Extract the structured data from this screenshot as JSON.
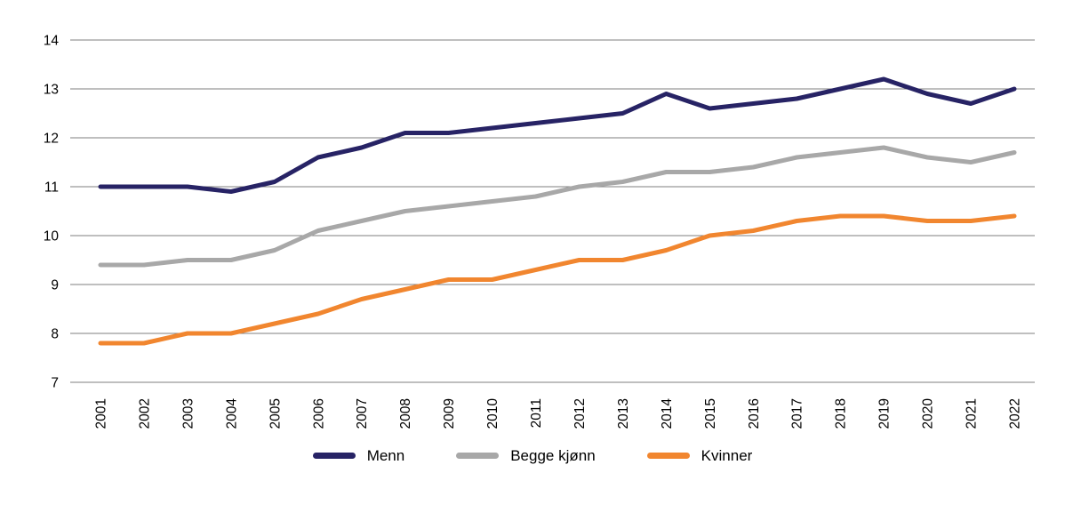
{
  "figure": {
    "background_color": "#ffffff",
    "gridline_color": "#7f7f7f",
    "text_color": "#000000"
  },
  "chart_data": {
    "type": "line",
    "categories": [
      "2001",
      "2002",
      "2003",
      "2004",
      "2005",
      "2006",
      "2007",
      "2008",
      "2009",
      "2010",
      "2011",
      "2012",
      "2013",
      "2014",
      "2015",
      "2016",
      "2017",
      "2018",
      "2019",
      "2020",
      "2021",
      "2022"
    ],
    "series": [
      {
        "name": "Menn",
        "color": "#272365",
        "values": [
          11.0,
          11.0,
          11.0,
          10.9,
          11.1,
          11.6,
          11.8,
          12.1,
          12.1,
          12.2,
          12.3,
          12.4,
          12.5,
          12.9,
          12.6,
          12.7,
          12.8,
          13.0,
          13.2,
          12.9,
          12.7,
          13.0
        ]
      },
      {
        "name": "Begge kjønn",
        "color": "#a8a8a8",
        "values": [
          9.4,
          9.4,
          9.5,
          9.5,
          9.7,
          10.1,
          10.3,
          10.5,
          10.6,
          10.7,
          10.8,
          11.0,
          11.1,
          11.3,
          11.3,
          11.4,
          11.6,
          11.7,
          11.8,
          11.6,
          11.5,
          11.7
        ]
      },
      {
        "name": "Kvinner",
        "color": "#f1862f",
        "values": [
          7.8,
          7.8,
          8.0,
          8.0,
          8.2,
          8.4,
          8.7,
          8.9,
          9.1,
          9.1,
          9.3,
          9.5,
          9.5,
          9.7,
          10.0,
          10.1,
          10.3,
          10.4,
          10.4,
          10.3,
          10.3,
          10.4
        ]
      }
    ],
    "ylim": [
      7,
      14
    ],
    "y_ticks": [
      7,
      8,
      9,
      10,
      11,
      12,
      13,
      14
    ],
    "grid": "horizontal",
    "legend_position": "bottom-center",
    "line_width": 5
  }
}
